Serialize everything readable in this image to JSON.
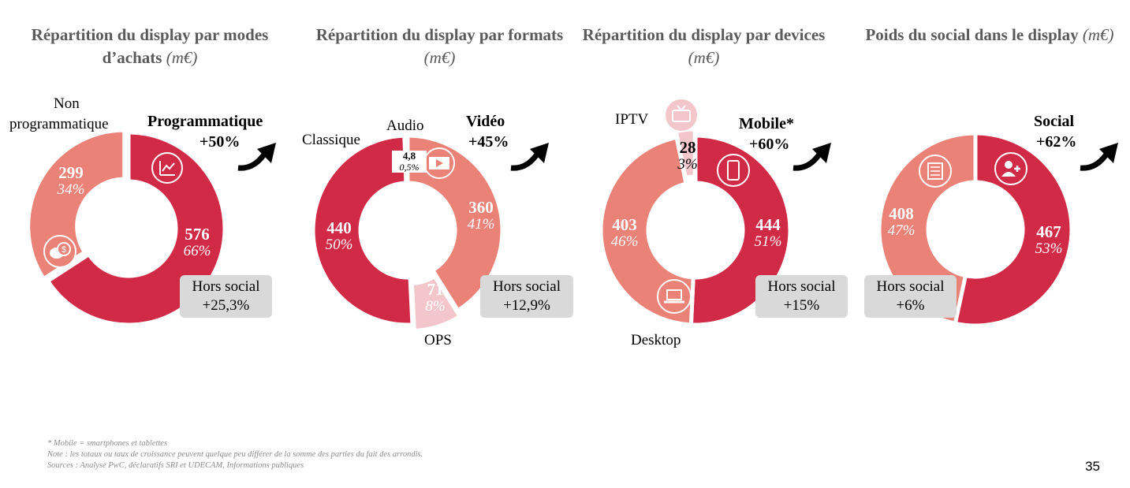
{
  "colors": {
    "dark": "#d12a46",
    "mid": "#ea8278",
    "light": "#f2c6cb",
    "title": "#5a5a5a"
  },
  "chart_data": [
    {
      "type": "pie",
      "title": "Répartition du display par modes d'achats",
      "unit": "(m€)",
      "slices": [
        {
          "name": "Programmatique",
          "value": 576,
          "pct": "66%",
          "color": "#d12a46",
          "icon": "chart-icon"
        },
        {
          "name": "Non programmatique",
          "value": 299,
          "pct": "34%",
          "color": "#ea8278",
          "icon": "money-chat-icon"
        }
      ],
      "growth": {
        "label": "Programmatique",
        "value": "+50%"
      },
      "badge": {
        "line1": "Hors social",
        "line2": "+25,3%"
      }
    },
    {
      "type": "pie",
      "title": "Répartition du display par formats",
      "unit": "(m€)",
      "slices": [
        {
          "name": "Audio",
          "value": 4.8,
          "pct": "0,5%",
          "color": "#ffffff"
        },
        {
          "name": "Vidéo",
          "value": 360,
          "pct": "41%",
          "color": "#ea8278",
          "icon": "film-icon"
        },
        {
          "name": "OPS",
          "value": 71,
          "pct": "8%",
          "color": "#f2c6cb"
        },
        {
          "name": "Classique",
          "value": 440,
          "pct": "50%",
          "color": "#d12a46"
        }
      ],
      "growth": {
        "label": "Vidéo",
        "value": "+45%"
      },
      "badge": {
        "line1": "Hors social",
        "line2": "+12,9%"
      }
    },
    {
      "type": "pie",
      "title": "Répartition du display par devices",
      "unit": "(m€)",
      "slices": [
        {
          "name": "Mobile*",
          "value": 444,
          "pct": "51%",
          "color": "#d12a46",
          "icon": "smartphone-icon"
        },
        {
          "name": "Desktop",
          "value": 403,
          "pct": "46%",
          "color": "#ea8278",
          "icon": "laptop-icon"
        },
        {
          "name": "IPTV",
          "value": 28,
          "pct": "3%",
          "color": "#f2c6cb",
          "icon": "tv-icon"
        }
      ],
      "growth": {
        "label": "Mobile*",
        "value": "+60%"
      },
      "badge": {
        "line1": "Hors social",
        "line2": "+15%"
      }
    },
    {
      "type": "pie",
      "title": "Poids du social dans le display",
      "unit": "(m€)",
      "slices": [
        {
          "name": "Social",
          "value": 467,
          "pct": "53%",
          "color": "#d12a46",
          "icon": "add-user-icon"
        },
        {
          "name": "Hors social",
          "value": 408,
          "pct": "47%",
          "color": "#ea8278",
          "icon": "newspaper-icon"
        }
      ],
      "growth": {
        "label": "Social",
        "value": "+62%"
      },
      "badge": {
        "line1": "Hors social",
        "line2": "+6%"
      }
    }
  ],
  "titles": {
    "c1": {
      "main": "Répartition du display par modes d’achats",
      "unit": "(m€)"
    },
    "c2": {
      "main": "Répartition du display par formats",
      "unit": "(m€)"
    },
    "c3": {
      "main": "Répartition du display par devices",
      "unit": "(m€)"
    },
    "c4": {
      "main": "Poids du social dans le display",
      "unit": "(m€)"
    }
  },
  "labels": {
    "c1": {
      "nonprog_1": "Non",
      "nonprog_2": "programmatique",
      "prog": "Programmatique",
      "prog_growth": "+50%",
      "v_prog": "576",
      "p_prog": "66%",
      "v_non": "299",
      "p_non": "34%",
      "badge_1": "Hors social",
      "badge_2": "+25,3%"
    },
    "c2": {
      "audio": "Audio",
      "classique": "Classique",
      "video": "Vidéo",
      "video_growth": "+45%",
      "ops": "OPS",
      "v_audio": "4,8",
      "p_audio": "0,5%",
      "v_video": "360",
      "p_video": "41%",
      "v_ops": "71",
      "p_ops": "8%",
      "v_class": "440",
      "p_class": "50%",
      "badge_1": "Hors social",
      "badge_2": "+12,9%"
    },
    "c3": {
      "iptv": "IPTV",
      "mobile": "Mobile*",
      "mobile_growth": "+60%",
      "desktop": "Desktop",
      "v_iptv": "28",
      "p_iptv": "3%",
      "v_mobile": "444",
      "p_mobile": "51%",
      "v_desk": "403",
      "p_desk": "46%",
      "badge_1": "Hors social",
      "badge_2": "+15%"
    },
    "c4": {
      "social": "Social",
      "social_growth": "+62%",
      "v_social": "467",
      "p_social": "53%",
      "v_hors": "408",
      "p_hors": "47%",
      "badge_1": "Hors social",
      "badge_2": "+6%"
    }
  },
  "footer": {
    "line1": "* Mobile = smartphones et tablettes",
    "line2": "Note : les totaux ou taux de croissance peuvent quelque peu différer de la somme des parties du fait des arrondis.",
    "line3": "Sources : Analyse PwC, déclaratifs SRI et UDECAM, Informations publiques"
  },
  "page_number": "35"
}
